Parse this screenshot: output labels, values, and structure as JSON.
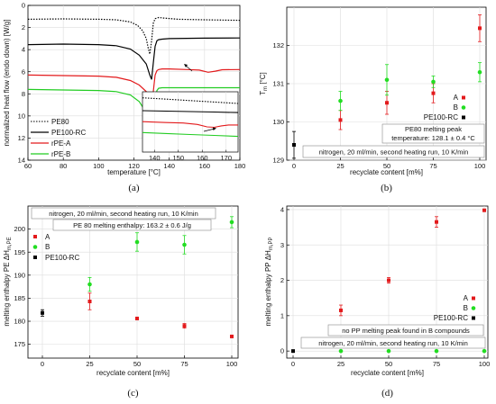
{
  "chart_data": [
    {
      "panel": "(a)",
      "type": "line",
      "xlabel": "temperature [°C]",
      "ylabel": "normalized heat flow (endo down) [W/g]",
      "xlim": [
        60,
        180
      ],
      "ylim": [
        14,
        0
      ],
      "xticks": [
        "60",
        "80",
        "100",
        "120",
        "140",
        "160",
        "180"
      ],
      "yticks": [
        "0",
        "2",
        "4",
        "6",
        "8",
        "10",
        "12",
        "14"
      ],
      "grid": true,
      "legend_position": "bottom-right",
      "series": [
        {
          "name": "PE80",
          "color": "#000000",
          "dash": "dotted",
          "x": [
            60,
            80,
            100,
            110,
            118,
            122,
            125,
            127,
            128,
            129,
            130,
            131,
            132,
            134,
            137,
            145,
            160,
            180
          ],
          "y": [
            1.25,
            1.22,
            1.25,
            1.3,
            1.5,
            1.8,
            2.3,
            3.0,
            3.8,
            4.4,
            3.2,
            1.6,
            1.2,
            1.1,
            1.15,
            1.25,
            1.3,
            1.35
          ]
        },
        {
          "name": "PE100-RC",
          "color": "#000000",
          "dash": "solid",
          "x": [
            60,
            80,
            100,
            110,
            118,
            123,
            127,
            129,
            130,
            131,
            132,
            133,
            134,
            136,
            140,
            150,
            160,
            180
          ],
          "y": [
            3.55,
            3.5,
            3.55,
            3.65,
            3.95,
            4.5,
            5.3,
            6.3,
            6.7,
            5.2,
            3.7,
            3.2,
            3.1,
            3.05,
            3.0,
            2.98,
            2.96,
            2.95
          ]
        },
        {
          "name": "rPE-A",
          "color": "#e31a1c",
          "dash": "solid",
          "x": [
            60,
            80,
            100,
            110,
            118,
            123,
            127,
            129,
            130,
            131,
            132,
            133,
            134,
            136,
            140,
            150,
            157,
            162,
            166,
            170,
            180
          ],
          "y": [
            6.3,
            6.35,
            6.4,
            6.5,
            6.8,
            7.2,
            7.8,
            8.4,
            8.8,
            7.8,
            6.3,
            5.9,
            5.8,
            5.75,
            5.75,
            5.8,
            5.85,
            6.05,
            5.95,
            5.82,
            5.8
          ]
        },
        {
          "name": "rPE-B",
          "color": "#22cc22",
          "dash": "solid",
          "x": [
            60,
            80,
            100,
            110,
            118,
            123,
            127,
            129,
            130,
            131,
            132,
            133,
            134,
            136,
            140,
            150,
            160,
            180
          ],
          "y": [
            7.6,
            7.65,
            7.7,
            7.8,
            8.1,
            8.7,
            9.7,
            10.8,
            11.5,
            11.2,
            8.7,
            7.7,
            7.5,
            7.45,
            7.45,
            7.45,
            7.45,
            7.45
          ]
        }
      ],
      "inset": {
        "xlim": [
          135,
          175
        ],
        "xticks": [
          "140",
          "150",
          "160",
          "170"
        ],
        "series": [
          {
            "name": "PE80",
            "x": [
              135,
              145,
              155,
              165,
              175
            ],
            "y": [
              0.05,
              0.08,
              0.11,
              0.14,
              0.17
            ]
          },
          {
            "name": "PE100-RC",
            "x": [
              135,
              145,
              155,
              165,
              175
            ],
            "y": [
              0.32,
              0.33,
              0.34,
              0.35,
              0.36
            ]
          },
          {
            "name": "rPE-A",
            "x": [
              135,
              145,
              152,
              158,
              162,
              165,
              168,
              171,
              175
            ],
            "y": [
              0.55,
              0.57,
              0.58,
              0.61,
              0.66,
              0.67,
              0.64,
              0.62,
              0.62
            ]
          },
          {
            "name": "rPE-B",
            "x": [
              135,
              145,
              155,
              165,
              175
            ],
            "y": [
              0.78,
              0.8,
              0.82,
              0.84,
              0.86
            ]
          }
        ]
      }
    },
    {
      "panel": "(b)",
      "type": "scatter",
      "xlabel": "recyclate content [m%]",
      "ylabel": "Tm [°C]",
      "xlim": [
        0,
        100
      ],
      "ylim": [
        129,
        133
      ],
      "xticks": [
        "0",
        "25",
        "50",
        "75",
        "100"
      ],
      "yticks": [
        "129",
        "130",
        "131",
        "132"
      ],
      "grid": true,
      "legend_position": "bottom-right",
      "series": [
        {
          "name": "A",
          "color": "#e31a1c",
          "x": [
            25,
            50,
            75,
            100
          ],
          "y": [
            130.05,
            130.5,
            130.75,
            132.45
          ],
          "err": [
            0.25,
            0.3,
            0.25,
            0.35
          ]
        },
        {
          "name": "B",
          "color": "#22dd22",
          "x": [
            25,
            50,
            75,
            100
          ],
          "y": [
            130.55,
            131.1,
            131.05,
            131.3
          ],
          "err": [
            0.25,
            0.4,
            0.15,
            0.25
          ]
        },
        {
          "name": "PE100-RC",
          "color": "#000000",
          "x": [
            0
          ],
          "y": [
            129.4
          ],
          "err": [
            0.35
          ]
        }
      ],
      "annotations": [
        "PE80 melting peak",
        "temperature: 128.1 ± 0.4 °C",
        "nitrogen, 20 ml/min, second heating run, 10 K/min"
      ]
    },
    {
      "panel": "(c)",
      "type": "scatter",
      "xlabel": "recyclate content [m%]",
      "ylabel": "melting enthalpy PE ΔHm,PE",
      "xlim": [
        0,
        100
      ],
      "ylim": [
        172,
        205
      ],
      "xticks": [
        "0",
        "25",
        "50",
        "75",
        "100"
      ],
      "yticks": [
        "175",
        "180",
        "185",
        "190",
        "195",
        "200"
      ],
      "grid": true,
      "legend_position": "top-left",
      "series": [
        {
          "name": "A",
          "color": "#e31a1c",
          "x": [
            25,
            50,
            75,
            100
          ],
          "y": [
            184.3,
            180.6,
            179.0,
            176.7
          ],
          "err": [
            1.8,
            0,
            0.5,
            0
          ]
        },
        {
          "name": "B",
          "color": "#22dd22",
          "x": [
            25,
            50,
            75,
            100
          ],
          "y": [
            188.0,
            197.2,
            196.6,
            201.5
          ],
          "err": [
            1.5,
            2.0,
            2.0,
            1.2
          ]
        },
        {
          "name": "PE100-RC",
          "color": "#000000",
          "x": [
            0
          ],
          "y": [
            181.8
          ],
          "err": [
            0.7
          ]
        }
      ],
      "annotations": [
        "nitrogen, 20 ml/min, second heating run, 10 K/min",
        "PE 80 melting enthalpy: 163.2 ± 0.6 J/g"
      ]
    },
    {
      "panel": "(d)",
      "type": "scatter",
      "xlabel": "recyclate content [m%]",
      "ylabel": "melting enthalpy PP ΔHm,PP",
      "xlim": [
        0,
        100
      ],
      "ylim": [
        -0.2,
        4.1
      ],
      "xticks": [
        "0",
        "25",
        "50",
        "75",
        "100"
      ],
      "yticks": [
        "0",
        "1",
        "2",
        "3",
        "4"
      ],
      "grid": true,
      "legend_position": "bottom-right",
      "series": [
        {
          "name": "A",
          "color": "#e31a1c",
          "x": [
            25,
            50,
            75,
            100
          ],
          "y": [
            1.15,
            2.0,
            3.65,
            3.98
          ],
          "err": [
            0.15,
            0.08,
            0.15,
            0
          ]
        },
        {
          "name": "B",
          "color": "#22dd22",
          "x": [
            25,
            50,
            75,
            100
          ],
          "y": [
            0,
            0,
            0,
            0
          ],
          "err": [
            0,
            0,
            0,
            0
          ]
        },
        {
          "name": "PE100-RC",
          "color": "#000000",
          "x": [
            0
          ],
          "y": [
            0
          ],
          "err": [
            0
          ]
        }
      ],
      "annotations": [
        "no PP melting peak found in B compounds",
        "nitrogen, 20 ml/min, second heating run, 10 K/min"
      ]
    }
  ],
  "labels": {
    "a": {
      "panel": "(a)",
      "xlabel": "temperature [°C]",
      "ylabel": "normalized heat flow (endo down) [W/g]",
      "xticks": [
        "60",
        "80",
        "100",
        "120",
        "140",
        "160",
        "180"
      ],
      "yticks": [
        "0",
        "2",
        "4",
        "6",
        "8",
        "10",
        "12",
        "14"
      ],
      "inset_xticks": [
        "140",
        "150",
        "160",
        "170"
      ],
      "legend": [
        "PE80",
        "PE100-RC",
        "rPE-A",
        "rPE-B"
      ]
    },
    "b": {
      "panel": "(b)",
      "xlabel": "recyclate content [m%]",
      "ylabel": "T",
      "ylabel_sub": "m",
      "ylabel_unit": " [°C]",
      "xticks": [
        "0",
        "25",
        "50",
        "75",
        "100"
      ],
      "yticks": [
        "129",
        "130",
        "131",
        "132"
      ],
      "legend": [
        "A",
        "B",
        "PE100-RC"
      ],
      "note1": "PE80 melting peak",
      "note2": "temperature: 128.1 ± 0.4 °C",
      "note3": "nitrogen, 20 ml/min, second heating run, 10 K/min"
    },
    "c": {
      "panel": "(c)",
      "xlabel": "recyclate content [m%]",
      "ylabel": "melting enthalpy PE ΔH",
      "ylabel_sub": "m,PE",
      "xticks": [
        "0",
        "25",
        "50",
        "75",
        "100"
      ],
      "yticks": [
        "175",
        "180",
        "185",
        "190",
        "195",
        "200"
      ],
      "legend": [
        "A",
        "B",
        "PE100-RC"
      ],
      "note1": "nitrogen, 20 ml/min, second heating run, 10 K/min",
      "note2": "PE 80 melting enthalpy: 163.2 ± 0.6 J/g"
    },
    "d": {
      "panel": "(d)",
      "xlabel": "recyclate content [m%]",
      "ylabel": "melting enthalpy PP ΔH",
      "ylabel_sub": "m,PP",
      "xticks": [
        "0",
        "25",
        "50",
        "75",
        "100"
      ],
      "yticks": [
        "0",
        "1",
        "2",
        "3",
        "4"
      ],
      "legend": [
        "A",
        "B",
        "PE100-RC"
      ],
      "note1": "no PP melting peak found in B compounds",
      "note2": "nitrogen, 20 ml/min, second heating run, 10 K/min"
    }
  }
}
